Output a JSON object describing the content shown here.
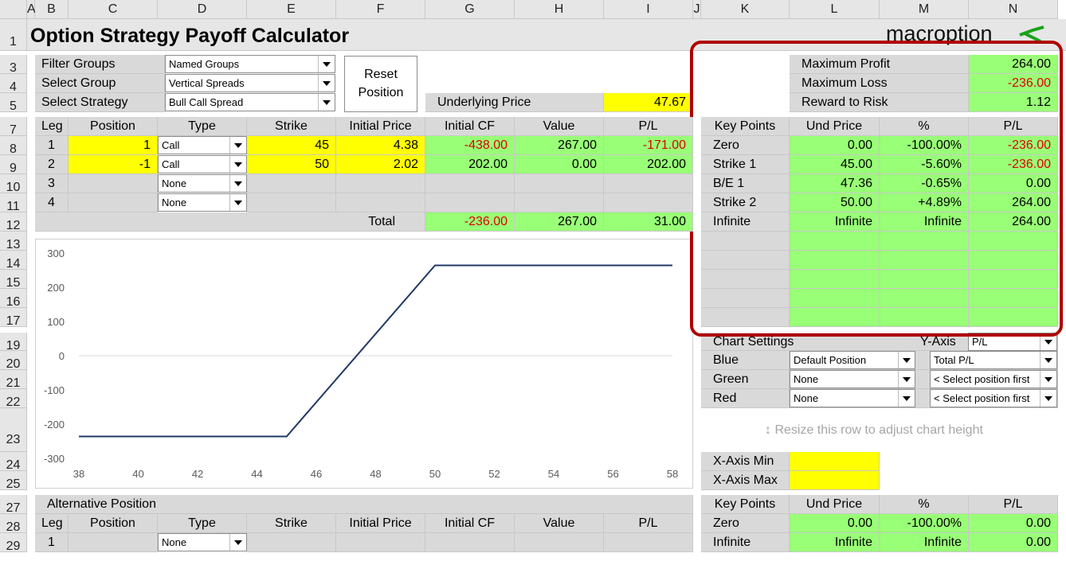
{
  "columns": [
    "A",
    "B",
    "C",
    "D",
    "E",
    "F",
    "G",
    "H",
    "I",
    "J",
    "K",
    "L",
    "M",
    "N"
  ],
  "rows": [
    "1",
    "3",
    "4",
    "5",
    "7",
    "8",
    "9",
    "10",
    "11",
    "12",
    "13",
    "14",
    "15",
    "16",
    "17",
    "19",
    "20",
    "21",
    "22",
    "23",
    "24",
    "25",
    "27",
    "28",
    "29"
  ],
  "title": "Option Strategy Payoff Calculator",
  "logo": "macroption",
  "filters": {
    "filter_groups_label": "Filter Groups",
    "filter_groups_value": "Named Groups",
    "select_group_label": "Select Group",
    "select_group_value": "Vertical Spreads",
    "select_strategy_label": "Select Strategy",
    "select_strategy_value": "Bull Call Spread"
  },
  "reset_button": {
    "line1": "Reset",
    "line2": "Position"
  },
  "underlying": {
    "label": "Underlying Price",
    "value": "47.67"
  },
  "summary": {
    "max_profit_label": "Maximum Profit",
    "max_profit": "264.00",
    "max_loss_label": "Maximum Loss",
    "max_loss": "-236.00",
    "reward_risk_label": "Reward to Risk",
    "reward_risk": "1.12"
  },
  "legs_header": [
    "Leg",
    "Position",
    "Type",
    "Strike",
    "Initial Price",
    "Initial CF",
    "Value",
    "P/L"
  ],
  "legs": [
    {
      "leg": "1",
      "position": "1",
      "type": "Call",
      "strike": "45",
      "price": "4.38",
      "cf": "-438.00",
      "value": "267.00",
      "pl": "-171.00"
    },
    {
      "leg": "2",
      "position": "-1",
      "type": "Call",
      "strike": "50",
      "price": "2.02",
      "cf": "202.00",
      "value": "0.00",
      "pl": "202.00"
    },
    {
      "leg": "3",
      "position": "",
      "type": "None",
      "strike": "",
      "price": "",
      "cf": "",
      "value": "",
      "pl": ""
    },
    {
      "leg": "4",
      "position": "",
      "type": "None",
      "strike": "",
      "price": "",
      "cf": "",
      "value": "",
      "pl": ""
    }
  ],
  "total": {
    "label": "Total",
    "cf": "-236.00",
    "value": "267.00",
    "pl": "31.00"
  },
  "key_points_header": [
    "Key Points",
    "Und Price",
    "%",
    "P/L"
  ],
  "key_points": [
    {
      "name": "Zero",
      "price": "0.00",
      "pct": "-100.00%",
      "pl": "-236.00"
    },
    {
      "name": "Strike 1",
      "price": "45.00",
      "pct": "-5.60%",
      "pl": "-236.00"
    },
    {
      "name": "B/E 1",
      "price": "47.36",
      "pct": "-0.65%",
      "pl": "0.00"
    },
    {
      "name": "Strike 2",
      "price": "50.00",
      "pct": "+4.89%",
      "pl": "264.00"
    },
    {
      "name": "Infinite",
      "price": "Infinite",
      "pct": "Infinite",
      "pl": "264.00"
    }
  ],
  "chart_settings": {
    "label": "Chart Settings",
    "yaxis_label": "Y-Axis",
    "yaxis_value": "P/L",
    "blue_label": "Blue",
    "blue_pos": "Default Position",
    "blue_val": "Total P/L",
    "green_label": "Green",
    "green_pos": "None",
    "green_val": "< Select position first",
    "red_label": "Red",
    "red_pos": "None",
    "red_val": "< Select position first"
  },
  "resize_hint": "Resize this row to adjust chart height",
  "xaxis": {
    "min_label": "X-Axis Min",
    "max_label": "X-Axis Max"
  },
  "alt": {
    "title": "Alternative Position",
    "header": [
      "Leg",
      "Position",
      "Type",
      "Strike",
      "Initial Price",
      "Initial CF",
      "Value",
      "P/L"
    ],
    "leg1": {
      "leg": "1",
      "type": "None"
    },
    "kp_header": [
      "Key Points",
      "Und Price",
      "%",
      "P/L"
    ],
    "kp1": {
      "name": "Zero",
      "price": "0.00",
      "pct": "-100.00%",
      "pl": "0.00"
    },
    "kp2": {
      "name": "Infinite",
      "price": "Infinite",
      "pct": "Infinite",
      "pl": "0.00"
    }
  },
  "colors": {
    "highlight": "#b00000",
    "line": "#1f3864",
    "input": "#ffff00",
    "output": "#99ff77"
  },
  "chart_data": {
    "type": "line",
    "x": [
      38,
      45,
      50,
      58
    ],
    "series": [
      {
        "values": [
          -236,
          -236,
          264,
          264
        ]
      }
    ],
    "xlim": [
      38,
      58
    ],
    "ylim": [
      -300,
      300
    ],
    "xticks": [
      "38",
      "40",
      "42",
      "44",
      "46",
      "48",
      "50",
      "52",
      "54",
      "56",
      "58"
    ],
    "yticks": [
      "300",
      "200",
      "100",
      "0",
      "-100",
      "-200",
      "-300"
    ],
    "grid": false
  }
}
